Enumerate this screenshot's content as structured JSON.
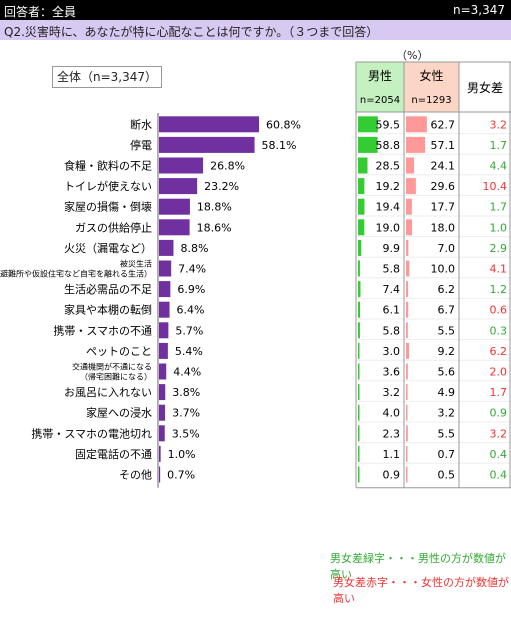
{
  "header": {
    "respondents": "回答者：全員",
    "n_total": "n=3,347"
  },
  "question": "Q2.災害時に、あなたが特に心配なことは何ですか。（３つまで回答）",
  "unit": "（%）",
  "total_label": "全体（n=3,347）",
  "table_headers": {
    "male": "男性",
    "male_n": "n=2054",
    "female": "女性",
    "female_n": "n=1293",
    "diff": "男女差"
  },
  "notes": {
    "green": "男女差緑字・・・男性の方が数値が高い",
    "red": "男女差赤字・・・女性の方が数値が高い"
  },
  "colors": {
    "bar": "#7030a0",
    "male_bar": "#33cc33",
    "female_bar": "#ff9999",
    "male_header": "#c5f0c0",
    "female_header": "#fbd5c5",
    "green_text": "#33aa33",
    "red_text": "#ee3333"
  },
  "chart_data": {
    "type": "bar",
    "categories": [
      "断水",
      "停電",
      "食糧・飲料の不足",
      "トイレが使えない",
      "家屋の損傷・倒壊",
      "ガスの供給停止",
      "火災（漏電など）",
      "被災生活（避難所や仮設住宅など自宅を離れる生活）",
      "生活必需品の不足",
      "家具や本棚の転倒",
      "携帯・スマホの不通",
      "ペットのこと",
      "交通機関が不通になる（帰宅困難になる）",
      "お風呂に入れない",
      "家屋への浸水",
      "携帯・スマホの電池切れ",
      "固定電話の不通",
      "その他"
    ],
    "series": [
      {
        "name": "全体",
        "values": [
          60.8,
          58.1,
          26.8,
          23.2,
          18.8,
          18.6,
          8.8,
          7.4,
          6.9,
          6.4,
          5.7,
          5.4,
          4.4,
          3.8,
          3.7,
          3.5,
          1.0,
          0.7
        ]
      },
      {
        "name": "男性",
        "values": [
          59.5,
          58.8,
          28.5,
          19.2,
          19.4,
          19.0,
          9.9,
          5.8,
          7.4,
          6.1,
          5.8,
          3.0,
          3.6,
          3.2,
          4.0,
          2.3,
          1.1,
          0.9
        ]
      },
      {
        "name": "女性",
        "values": [
          62.7,
          57.1,
          24.1,
          29.6,
          17.7,
          18.0,
          7.0,
          10.0,
          6.2,
          6.7,
          5.5,
          9.2,
          5.6,
          4.9,
          3.2,
          5.5,
          0.7,
          0.5
        ]
      }
    ],
    "diff": [
      "3.2",
      "1.7",
      "4.4",
      "10.4",
      "1.7",
      "1.0",
      "2.9",
      "4.1",
      "1.2",
      "0.6",
      "0.3",
      "6.2",
      "2.0",
      "1.7",
      "0.9",
      "3.2",
      "0.4",
      "0.4"
    ],
    "diff_direction": [
      "female",
      "male",
      "male",
      "female",
      "male",
      "male",
      "male",
      "female",
      "male",
      "female",
      "male",
      "female",
      "female",
      "female",
      "male",
      "female",
      "male",
      "male"
    ],
    "ylim": [
      0,
      100
    ]
  }
}
